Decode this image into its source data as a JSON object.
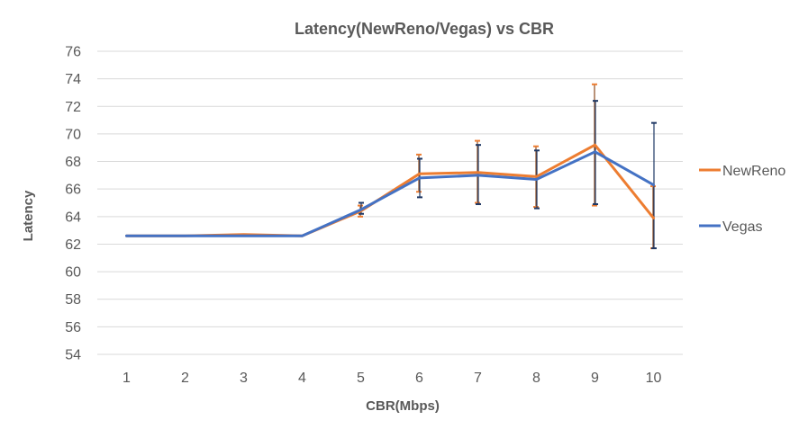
{
  "chart_data": {
    "type": "line",
    "title": "Latency(NewReno/Vegas) vs CBR",
    "xlabel": "CBR(Mbps)",
    "ylabel": "Latency",
    "categories": [
      "1",
      "2",
      "3",
      "4",
      "5",
      "6",
      "7",
      "8",
      "9",
      "10"
    ],
    "ylim": [
      54,
      76
    ],
    "ytick_step": 2,
    "grid": true,
    "legend_position": "right",
    "series": [
      {
        "name": "NewReno",
        "color": "#ED7D31",
        "values": [
          62.6,
          62.6,
          62.7,
          62.6,
          64.4,
          67.1,
          67.2,
          66.9,
          69.2,
          63.9
        ],
        "error_low": [
          null,
          null,
          null,
          null,
          64.0,
          65.8,
          65.0,
          64.7,
          64.8,
          61.7
        ],
        "error_high": [
          null,
          null,
          null,
          null,
          64.8,
          68.5,
          69.5,
          69.1,
          73.6,
          66.2
        ]
      },
      {
        "name": "Vegas",
        "color": "#4472C4",
        "values": [
          62.6,
          62.6,
          62.6,
          62.6,
          64.5,
          66.8,
          67.0,
          66.7,
          68.7,
          66.3
        ],
        "error_low": [
          null,
          null,
          null,
          null,
          64.2,
          65.4,
          64.9,
          64.6,
          64.9,
          61.7
        ],
        "error_high": [
          null,
          null,
          null,
          null,
          65.0,
          68.2,
          69.2,
          68.8,
          72.4,
          70.8
        ]
      }
    ]
  }
}
